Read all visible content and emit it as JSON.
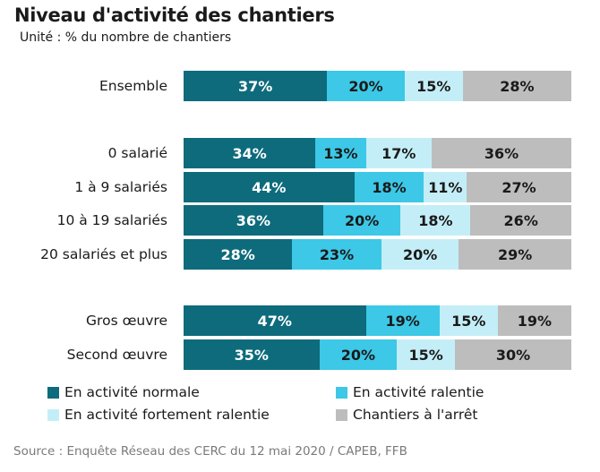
{
  "title": "Niveau d'activité des chantiers",
  "subtitle": "Unité : % du nombre de chantiers",
  "source": "Source : Enquête Réseau des CERC du 12 mai 2020 / CAPEB, FFB",
  "colors": {
    "en_activite_normale": "#0e6b7c",
    "en_activite_ralentie": "#3cc8e6",
    "en_activite_fortement_ralentie": "#c4eef7",
    "chantiers_a_l_arret": "#bdbdbd"
  },
  "chart_data": {
    "type": "bar",
    "orientation": "horizontal",
    "stacked": true,
    "unit": "%",
    "xlim": [
      0,
      100
    ],
    "categories": [
      "Ensemble",
      "0 salarié",
      "1 à 9 salariés",
      "10 à 19 salariés",
      "20 salariés et plus",
      "Gros œuvre",
      "Second œuvre"
    ],
    "series": [
      {
        "name": "En activité normale",
        "values": [
          37,
          34,
          44,
          36,
          28,
          47,
          35
        ]
      },
      {
        "name": "En activité ralentie",
        "values": [
          20,
          13,
          18,
          20,
          23,
          19,
          20
        ]
      },
      {
        "name": "En activité fortement ralentie",
        "values": [
          15,
          17,
          11,
          18,
          20,
          15,
          15
        ]
      },
      {
        "name": "Chantiers à l'arrêt",
        "values": [
          28,
          36,
          27,
          26,
          29,
          19,
          30
        ]
      }
    ],
    "legend": "bottom",
    "grid": false
  }
}
